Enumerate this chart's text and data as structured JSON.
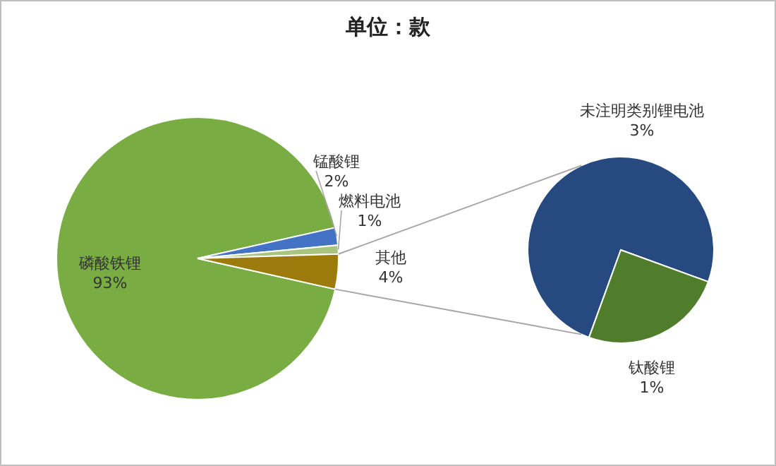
{
  "chart_data": [
    {
      "type": "pie",
      "title": "单位：款",
      "categories": [
        "磷酸铁锂",
        "锰酸锂",
        "燃料电池",
        "其他"
      ],
      "values": [
        93,
        2,
        1,
        4
      ],
      "colors": [
        "#79ac42",
        "#4472c4",
        "#a9c47f",
        "#9c7b0c"
      ],
      "value_labels": [
        "93%",
        "2%",
        "1%",
        "4%"
      ]
    },
    {
      "type": "pie",
      "categories": [
        "未注明类别锂电池",
        "钛酸锂"
      ],
      "values": [
        3,
        1
      ],
      "colors": [
        "#264a80",
        "#4f7d2c"
      ],
      "value_labels": [
        "3%",
        "1%"
      ]
    }
  ]
}
